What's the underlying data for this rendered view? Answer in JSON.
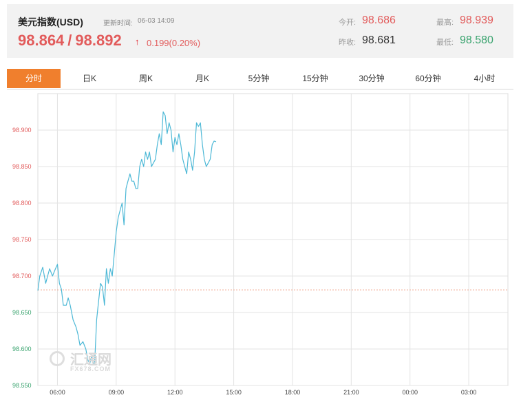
{
  "quote": {
    "name": "美元指数(USD)",
    "update_label": "更新时间:",
    "update_time": "06-03 14:09",
    "bid": "98.864",
    "separator": "/",
    "ask": "98.892",
    "arrow": "↑",
    "change": "0.199(0.20%)",
    "open_label": "今开:",
    "open_value": "98.686",
    "prev_close_label": "昨收:",
    "prev_close_value": "98.681",
    "high_label": "最高:",
    "high_value": "98.939",
    "low_label": "最低:",
    "low_value": "98.580"
  },
  "tabs": [
    {
      "label": "分时",
      "active": true
    },
    {
      "label": "日K",
      "active": false
    },
    {
      "label": "周K",
      "active": false
    },
    {
      "label": "月K",
      "active": false
    },
    {
      "label": "5分钟",
      "active": false
    },
    {
      "label": "15分钟",
      "active": false
    },
    {
      "label": "30分钟",
      "active": false
    },
    {
      "label": "60分钟",
      "active": false
    },
    {
      "label": "4小时",
      "active": false
    }
  ],
  "watermark": {
    "text": "汇通网",
    "sub": "FX678.COM"
  },
  "colors": {
    "up": "#e25b5b",
    "down": "#39a36e",
    "line": "#4cb8d6",
    "accent": "#f07f2d",
    "baseline": "#f0a58a"
  },
  "chart_data": {
    "type": "line",
    "ylim": [
      98.55,
      98.95
    ],
    "y_ticks": [
      {
        "value": 98.9,
        "label": "98.900"
      },
      {
        "value": 98.85,
        "label": "98.850"
      },
      {
        "value": 98.8,
        "label": "98.800"
      },
      {
        "value": 98.75,
        "label": "98.750"
      },
      {
        "value": 98.7,
        "label": "98.700"
      },
      {
        "value": 98.65,
        "label": "98.650"
      },
      {
        "value": 98.6,
        "label": "98.600"
      },
      {
        "value": 98.55,
        "label": "98.550"
      }
    ],
    "x_range": [
      5.0,
      29.0
    ],
    "x_unit": "hours",
    "x_ticks": [
      {
        "value": 6,
        "label": "06:00"
      },
      {
        "value": 9,
        "label": "09:00"
      },
      {
        "value": 12,
        "label": "12:00"
      },
      {
        "value": 15,
        "label": "15:00"
      },
      {
        "value": 18,
        "label": "18:00"
      },
      {
        "value": 21,
        "label": "21:00"
      },
      {
        "value": 24,
        "label": "00:00"
      },
      {
        "value": 27,
        "label": "03:00"
      }
    ],
    "reference_line": 98.681,
    "series": [
      {
        "x": [
          5.0,
          5.1,
          5.25,
          5.4,
          5.5,
          5.6,
          5.75,
          5.9,
          6.0,
          6.1,
          6.2,
          6.3,
          6.45,
          6.55,
          6.65,
          6.8,
          6.95,
          7.05,
          7.15,
          7.3,
          7.45,
          7.55,
          7.65,
          7.75,
          7.85,
          7.9,
          8.0,
          8.1,
          8.2,
          8.3,
          8.4,
          8.5,
          8.6,
          8.7,
          8.8,
          8.9,
          9.0,
          9.1,
          9.2,
          9.3,
          9.4,
          9.5,
          9.6,
          9.7,
          9.8,
          9.9,
          10.0,
          10.1,
          10.2,
          10.3,
          10.4,
          10.5,
          10.6,
          10.7,
          10.8,
          10.9,
          11.0,
          11.1,
          11.2,
          11.3,
          11.4,
          11.5,
          11.6,
          11.7,
          11.8,
          11.9,
          12.0,
          12.1,
          12.2,
          12.3,
          12.4,
          12.5,
          12.6,
          12.7,
          12.8,
          12.9,
          13.0,
          13.1,
          13.2,
          13.3,
          13.4,
          13.5,
          13.6,
          13.7,
          13.8,
          13.9,
          14.0,
          14.1
        ],
        "y": [
          98.68,
          98.7,
          98.712,
          98.69,
          98.7,
          98.71,
          98.7,
          98.71,
          98.716,
          98.69,
          98.682,
          98.66,
          98.66,
          98.67,
          98.66,
          98.64,
          98.63,
          98.62,
          98.605,
          98.61,
          98.6,
          98.585,
          98.58,
          98.59,
          98.58,
          98.58,
          98.64,
          98.665,
          98.69,
          98.685,
          98.66,
          98.71,
          98.69,
          98.71,
          98.7,
          98.73,
          98.76,
          98.78,
          98.79,
          98.8,
          98.77,
          98.82,
          98.83,
          98.84,
          98.83,
          98.83,
          98.82,
          98.82,
          98.85,
          98.86,
          98.85,
          98.87,
          98.86,
          98.87,
          98.85,
          98.855,
          98.86,
          98.88,
          98.895,
          98.88,
          98.925,
          98.92,
          98.895,
          98.91,
          98.9,
          98.87,
          98.89,
          98.88,
          98.895,
          98.88,
          98.86,
          98.85,
          98.84,
          98.87,
          98.86,
          98.845,
          98.87,
          98.91,
          98.905,
          98.91,
          98.88,
          98.86,
          98.85,
          98.855,
          98.86,
          98.88,
          98.885,
          98.884
        ]
      }
    ]
  }
}
